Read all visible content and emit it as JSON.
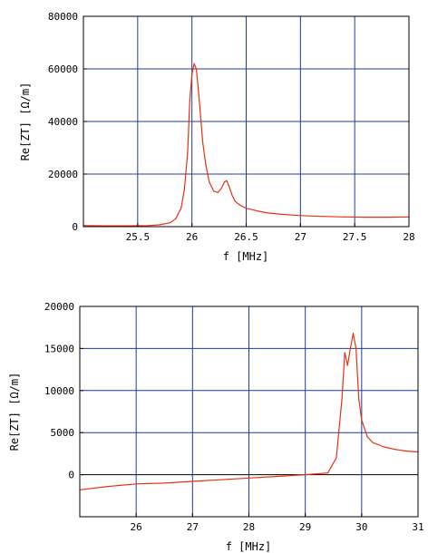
{
  "colors": {
    "grid": "#1f3c9c",
    "trace": "#e8320f",
    "frame": "#000000",
    "zero_line": "#000000",
    "background": "#ffffff"
  },
  "chart_data": [
    {
      "type": "line",
      "title": "",
      "xlabel": "f [MHz]",
      "ylabel": "Re[ZT] [Ω/m]",
      "xlim": [
        25,
        28
      ],
      "ylim": [
        0,
        80000
      ],
      "x_ticks": [
        25.5,
        26,
        26.5,
        27,
        27.5,
        28
      ],
      "x_tick_labels": [
        "25.5",
        "26",
        "26.5",
        "27",
        "27.5",
        "28"
      ],
      "y_ticks": [
        0,
        20000,
        40000,
        60000,
        80000
      ],
      "y_tick_labels": [
        "0",
        "20000",
        "40000",
        "60000",
        "80000"
      ],
      "x_grid": [
        25.5,
        26,
        26.5,
        27,
        27.5
      ],
      "y_grid": [
        20000,
        40000,
        60000
      ],
      "grid": true,
      "series": [
        {
          "x": [
            25.0,
            25.2,
            25.4,
            25.6,
            25.7,
            25.8,
            25.85,
            25.9,
            25.93,
            25.96,
            25.98,
            26.0,
            26.02,
            26.04,
            26.06,
            26.08,
            26.1,
            26.13,
            26.16,
            26.2,
            26.24,
            26.27,
            26.3,
            26.32,
            26.34,
            26.37,
            26.4,
            26.45,
            26.5,
            26.6,
            26.7,
            26.8,
            27.0,
            27.2,
            27.4,
            27.6,
            27.8,
            28.0
          ],
          "y": [
            400,
            300,
            300,
            400,
            700,
            1500,
            3000,
            7000,
            14000,
            28000,
            48000,
            58000,
            62000,
            60000,
            52000,
            42000,
            32000,
            23000,
            17000,
            13500,
            13000,
            14500,
            17000,
            17500,
            15500,
            12000,
            9500,
            8000,
            7000,
            6000,
            5200,
            4800,
            4200,
            3900,
            3700,
            3600,
            3600,
            3700
          ]
        }
      ]
    },
    {
      "type": "line",
      "title": "",
      "xlabel": "f [MHz]",
      "ylabel": "Re[ZT] [Ω/m]",
      "xlim": [
        25,
        31
      ],
      "ylim": [
        -5000,
        20000
      ],
      "x_ticks": [
        26,
        27,
        28,
        29,
        30,
        31
      ],
      "x_tick_labels": [
        "26",
        "27",
        "28",
        "29",
        "30",
        "31"
      ],
      "y_ticks": [
        0,
        5000,
        10000,
        15000,
        20000
      ],
      "y_tick_labels": [
        "0",
        "5000",
        "10000",
        "15000",
        "20000"
      ],
      "x_grid": [
        26,
        27,
        28,
        29,
        30
      ],
      "y_grid": [
        5000,
        10000,
        15000
      ],
      "zero_line": true,
      "grid": true,
      "series": [
        {
          "x": [
            25.0,
            25.5,
            26.0,
            26.5,
            27.0,
            27.5,
            28.0,
            28.5,
            29.0,
            29.4,
            29.55,
            29.65,
            29.7,
            29.75,
            29.8,
            29.85,
            29.9,
            29.95,
            30.0,
            30.1,
            30.2,
            30.4,
            30.6,
            30.8,
            31.0
          ],
          "y": [
            -1800,
            -1400,
            -1100,
            -1000,
            -800,
            -600,
            -400,
            -200,
            0,
            200,
            2000,
            9000,
            14500,
            13000,
            15000,
            16800,
            15000,
            9000,
            6500,
            4500,
            3800,
            3300,
            3000,
            2800,
            2700
          ]
        }
      ]
    }
  ]
}
